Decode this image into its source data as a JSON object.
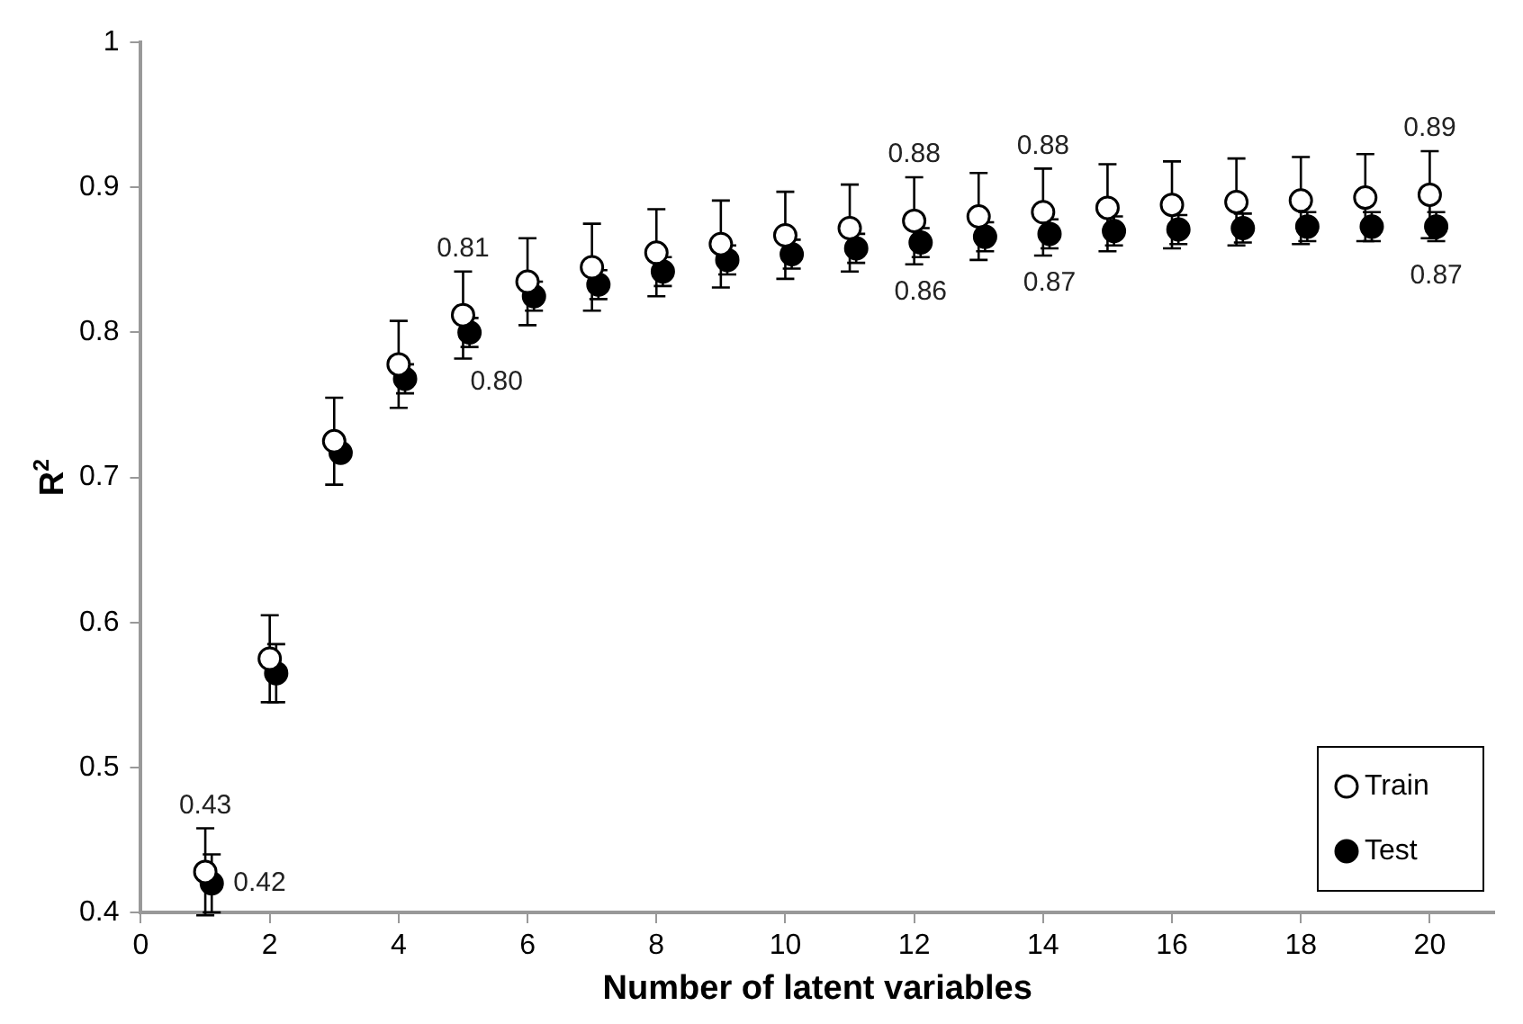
{
  "chart_data": {
    "type": "scatter",
    "xlabel": "Number of latent variables",
    "ylabel": "R$^{2}$",
    "xlim": [
      0,
      21
    ],
    "xticks": [
      0,
      2,
      4,
      6,
      8,
      10,
      12,
      14,
      16,
      18,
      20
    ],
    "ylim": [
      0.4,
      1
    ],
    "yticks": [
      0.4,
      0.5,
      0.6,
      0.7,
      0.8,
      0.9,
      1
    ],
    "grid": false,
    "legend": "bottom right",
    "marker": "circle",
    "series": [
      {
        "name": "Train",
        "color": "#000000",
        "x": [
          1,
          2,
          3,
          4,
          5,
          6,
          7,
          8,
          9,
          10,
          11,
          12,
          13,
          14,
          15,
          16,
          17,
          18,
          19,
          20
        ],
        "values": [
          0.428,
          0.575,
          0.725,
          0.778,
          0.812,
          0.835,
          0.845,
          0.855,
          0.861,
          0.867,
          0.872,
          0.877,
          0.88,
          0.883,
          0.886,
          0.888,
          0.89,
          0.891,
          0.893,
          0.895
        ],
        "errors": [
          0.03,
          0.03,
          0.03,
          0.03,
          0.03,
          0.03,
          0.03,
          0.03,
          0.03,
          0.03,
          0.03,
          0.03,
          0.03,
          0.03,
          0.03,
          0.03,
          0.03,
          0.03,
          0.03,
          0.03
        ],
        "value_labels": [
          "0.43",
          null,
          null,
          null,
          "0.81",
          null,
          null,
          null,
          null,
          null,
          null,
          "0.88",
          null,
          "0.88",
          null,
          null,
          null,
          null,
          null,
          "0.89"
        ]
      },
      {
        "name": "Test",
        "color": "#000000",
        "x": [
          1.1,
          2.1,
          3.1,
          4.1,
          5.1,
          6.1,
          7.1,
          8.1,
          9.1,
          10.1,
          11.1,
          12.1,
          13.1,
          14.1,
          15.1,
          16.1,
          17.1,
          18.1,
          19.1,
          20.1
        ],
        "values": [
          0.42,
          0.565,
          0.717,
          0.768,
          0.8,
          0.825,
          0.833,
          0.842,
          0.85,
          0.854,
          0.858,
          0.862,
          0.866,
          0.868,
          0.87,
          0.871,
          0.872,
          0.873,
          0.873,
          0.873
        ],
        "errors": [
          0.02,
          0.02,
          null,
          0.01,
          0.01,
          0.01,
          0.01,
          0.01,
          0.01,
          0.01,
          0.01,
          0.01,
          0.01,
          0.01,
          0.01,
          0.01,
          0.01,
          0.01,
          0.01,
          0.01
        ],
        "value_labels": [
          "0.42",
          null,
          null,
          null,
          "0.80",
          null,
          null,
          null,
          null,
          null,
          null,
          "0.86",
          null,
          "0.87",
          null,
          null,
          null,
          null,
          null,
          "0.87"
        ]
      }
    ]
  }
}
